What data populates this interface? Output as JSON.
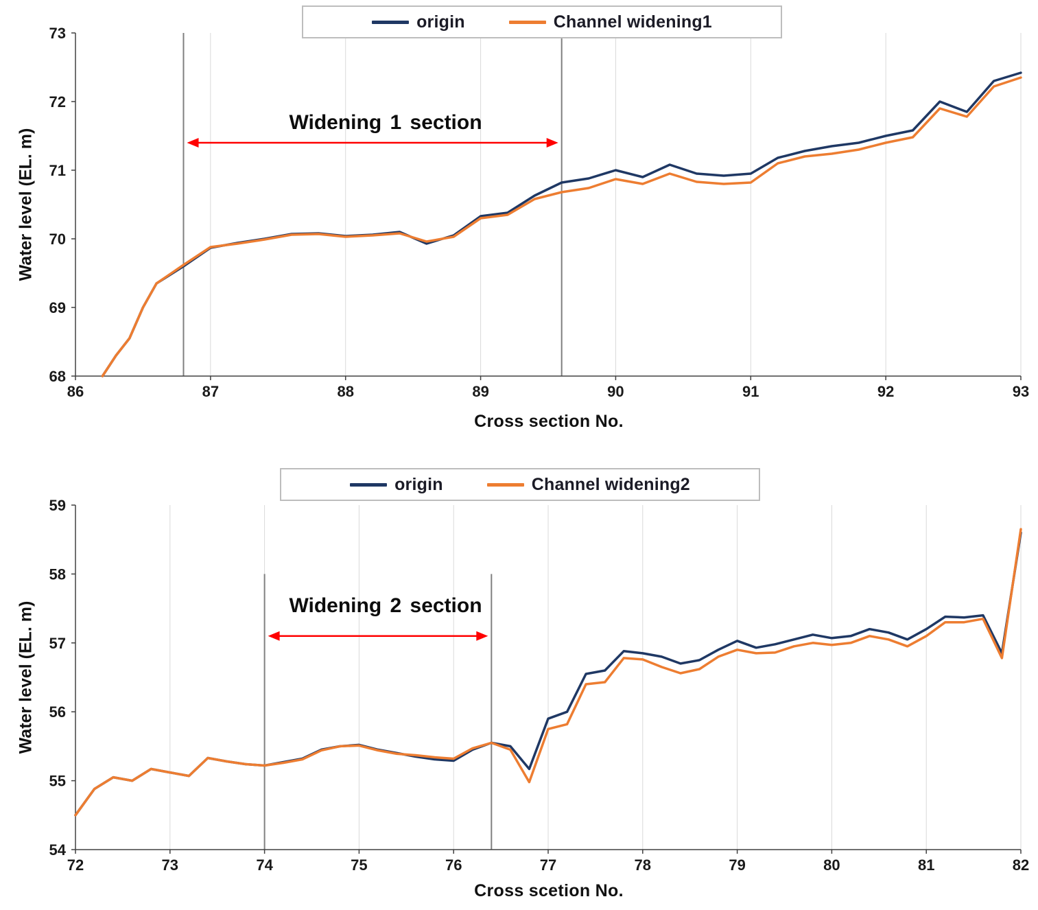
{
  "colors": {
    "navy": "#1f3864",
    "orange": "#ed7d31",
    "grid": "#d9d9d9",
    "axis": "#404040",
    "marker": "#7f7f7f",
    "arrow": "#ff0000"
  },
  "chart_data": [
    {
      "type": "line",
      "title": "",
      "ylabel": "Water level (EL. m)",
      "xlabel": "Cross section No.",
      "xlim": [
        86,
        93
      ],
      "ylim": [
        68,
        73
      ],
      "xticks": [
        86,
        87,
        88,
        89,
        90,
        91,
        92,
        93
      ],
      "yticks": [
        68,
        69,
        70,
        71,
        72,
        73
      ],
      "grid": "vertical-only",
      "legend_position": "top-center",
      "legend": [
        {
          "label": "origin",
          "color": "#1f3864"
        },
        {
          "label": "Channel widening1",
          "color": "#ed7d31"
        }
      ],
      "annotation": {
        "text": "Widening 1 section",
        "x1": 86.8,
        "x2": 89.6,
        "arrow_y": 71.4
      },
      "marker_lines": [
        {
          "x": 86.8,
          "y_top": 73,
          "y_bottom": 68
        },
        {
          "x": 89.6,
          "y_top": 73,
          "y_bottom": 68
        }
      ],
      "series": [
        {
          "name": "origin",
          "color": "#1f3864",
          "x": [
            86.2,
            86.3,
            86.4,
            86.5,
            86.6,
            86.8,
            87,
            87.2,
            87.4,
            87.6,
            87.8,
            88,
            88.2,
            88.4,
            88.6,
            88.8,
            89,
            89.2,
            89.4,
            89.6,
            89.8,
            90,
            90.2,
            90.4,
            90.6,
            90.8,
            91,
            91.2,
            91.4,
            91.6,
            91.8,
            92,
            92.2,
            92.4,
            92.6,
            92.8,
            93
          ],
          "y": [
            68.0,
            68.3,
            68.55,
            69.0,
            69.35,
            69.6,
            69.87,
            69.94,
            70.0,
            70.07,
            70.08,
            70.04,
            70.06,
            70.1,
            69.93,
            70.05,
            70.33,
            70.38,
            70.63,
            70.82,
            70.88,
            71.0,
            70.9,
            71.08,
            70.95,
            70.92,
            70.95,
            71.18,
            71.28,
            71.35,
            71.4,
            71.5,
            71.58,
            72.0,
            71.85,
            72.3,
            72.42
          ]
        },
        {
          "name": "Channel widening1",
          "color": "#ed7d31",
          "x": [
            86.2,
            86.3,
            86.4,
            86.5,
            86.6,
            86.8,
            87,
            87.2,
            87.4,
            87.6,
            87.8,
            88,
            88.2,
            88.4,
            88.6,
            88.8,
            89,
            89.2,
            89.4,
            89.6,
            89.8,
            90,
            90.2,
            90.4,
            90.6,
            90.8,
            91,
            91.2,
            91.4,
            91.6,
            91.8,
            92,
            92.2,
            92.4,
            92.6,
            92.8,
            93
          ],
          "y": [
            68.0,
            68.3,
            68.55,
            69.0,
            69.35,
            69.62,
            69.88,
            69.93,
            69.99,
            70.06,
            70.07,
            70.03,
            70.05,
            70.08,
            69.96,
            70.03,
            70.3,
            70.35,
            70.58,
            70.68,
            70.74,
            70.87,
            70.8,
            70.95,
            70.83,
            70.8,
            70.82,
            71.1,
            71.2,
            71.24,
            71.3,
            71.4,
            71.48,
            71.9,
            71.78,
            72.22,
            72.35
          ]
        }
      ]
    },
    {
      "type": "line",
      "title": "",
      "ylabel": "Water level (EL. m)",
      "xlabel": "Cross scetion No.",
      "xlim": [
        72,
        82
      ],
      "ylim": [
        54,
        59
      ],
      "xticks": [
        72,
        73,
        74,
        75,
        76,
        77,
        78,
        79,
        80,
        81,
        82
      ],
      "yticks": [
        54,
        55,
        56,
        57,
        58,
        59
      ],
      "grid": "vertical-only",
      "legend_position": "top-center",
      "legend": [
        {
          "label": "origin",
          "color": "#1f3864"
        },
        {
          "label": "Channel widening2",
          "color": "#ed7d31"
        }
      ],
      "annotation": {
        "text": "Widening 2 section",
        "x1": 74,
        "x2": 76.4,
        "arrow_y": 57.1
      },
      "marker_lines": [
        {
          "x": 74,
          "y_top": 58,
          "y_bottom": 54
        },
        {
          "x": 76.4,
          "y_top": 58,
          "y_bottom": 54
        }
      ],
      "series": [
        {
          "name": "origin",
          "color": "#1f3864",
          "x": [
            72,
            72.2,
            72.4,
            72.6,
            72.8,
            73,
            73.2,
            73.4,
            73.6,
            73.8,
            74,
            74.2,
            74.4,
            74.6,
            74.8,
            75,
            75.2,
            75.4,
            75.6,
            75.8,
            76,
            76.2,
            76.4,
            76.6,
            76.8,
            77,
            77.2,
            77.4,
            77.6,
            77.8,
            78,
            78.2,
            78.4,
            78.6,
            78.8,
            79,
            79.2,
            79.4,
            79.6,
            79.8,
            80,
            80.2,
            80.4,
            80.6,
            80.8,
            81,
            81.2,
            81.4,
            81.6,
            81.8,
            82
          ],
          "y": [
            54.5,
            54.88,
            55.05,
            55.0,
            55.17,
            55.12,
            55.07,
            55.33,
            55.28,
            55.24,
            55.22,
            55.27,
            55.32,
            55.45,
            55.5,
            55.52,
            55.45,
            55.4,
            55.35,
            55.31,
            55.29,
            55.45,
            55.55,
            55.5,
            55.17,
            55.9,
            56.0,
            56.55,
            56.6,
            56.88,
            56.85,
            56.8,
            56.7,
            56.75,
            56.9,
            57.03,
            56.93,
            56.98,
            57.05,
            57.12,
            57.07,
            57.1,
            57.2,
            57.15,
            57.05,
            57.2,
            57.38,
            57.37,
            57.4,
            56.85,
            58.6
          ]
        },
        {
          "name": "Channel widening2",
          "color": "#ed7d31",
          "x": [
            72,
            72.2,
            72.4,
            72.6,
            72.8,
            73,
            73.2,
            73.4,
            73.6,
            73.8,
            74,
            74.2,
            74.4,
            74.6,
            74.8,
            75,
            75.2,
            75.4,
            75.6,
            75.8,
            76,
            76.2,
            76.4,
            76.6,
            76.8,
            77,
            77.2,
            77.4,
            77.6,
            77.8,
            78,
            78.2,
            78.4,
            78.6,
            78.8,
            79,
            79.2,
            79.4,
            79.6,
            79.8,
            80,
            80.2,
            80.4,
            80.6,
            80.8,
            81,
            81.2,
            81.4,
            81.6,
            81.8,
            82
          ],
          "y": [
            54.5,
            54.88,
            55.05,
            55.0,
            55.17,
            55.12,
            55.07,
            55.33,
            55.28,
            55.24,
            55.22,
            55.26,
            55.31,
            55.44,
            55.5,
            55.51,
            55.44,
            55.39,
            55.37,
            55.34,
            55.32,
            55.47,
            55.55,
            55.45,
            54.98,
            55.75,
            55.82,
            56.4,
            56.43,
            56.78,
            56.76,
            56.65,
            56.56,
            56.62,
            56.8,
            56.9,
            56.85,
            56.86,
            56.95,
            57.0,
            56.97,
            57.0,
            57.1,
            57.05,
            56.95,
            57.1,
            57.3,
            57.3,
            57.35,
            56.78,
            58.65
          ]
        }
      ]
    }
  ]
}
